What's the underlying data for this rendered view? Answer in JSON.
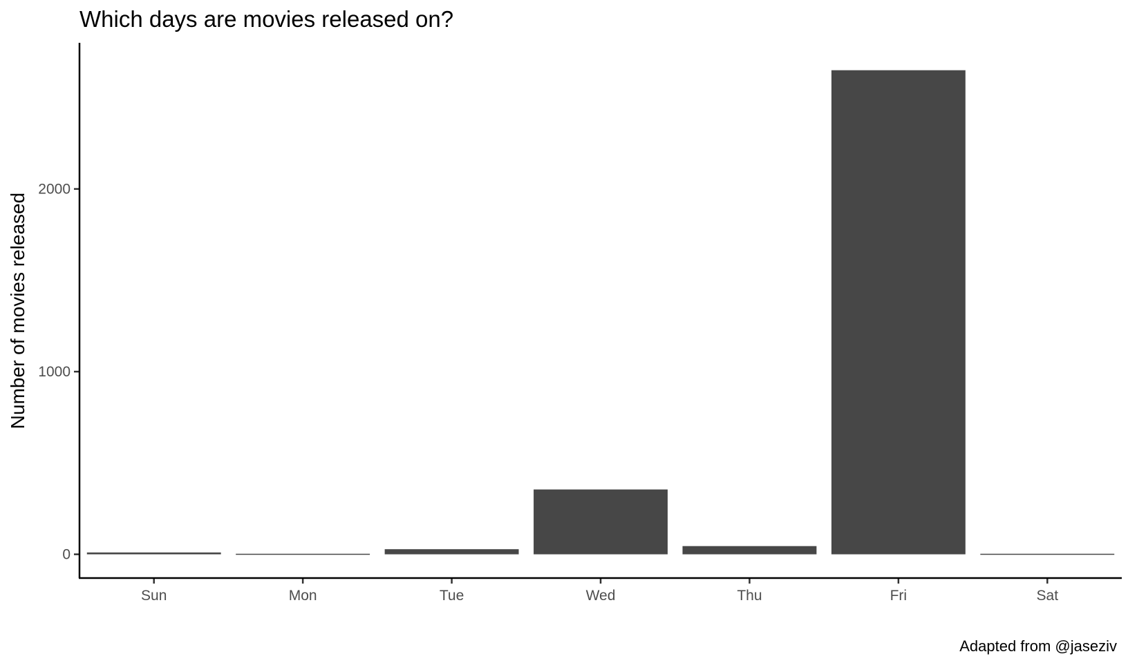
{
  "chart_data": {
    "type": "bar",
    "title": "Which days are movies released on?",
    "xlabel": "",
    "ylabel": "Number of movies released",
    "caption": "Adapted from @jaseziv",
    "categories": [
      "Sun",
      "Mon",
      "Tue",
      "Wed",
      "Thu",
      "Fri",
      "Sat"
    ],
    "values": [
      10,
      3,
      28,
      355,
      45,
      2650,
      3
    ],
    "yticks": [
      0,
      1000,
      2000
    ],
    "ytick_labels": [
      "0",
      "1000",
      "2000"
    ],
    "ylim": [
      -130,
      2800
    ],
    "bar_color": "#474747",
    "grid": false,
    "legend": "none"
  }
}
